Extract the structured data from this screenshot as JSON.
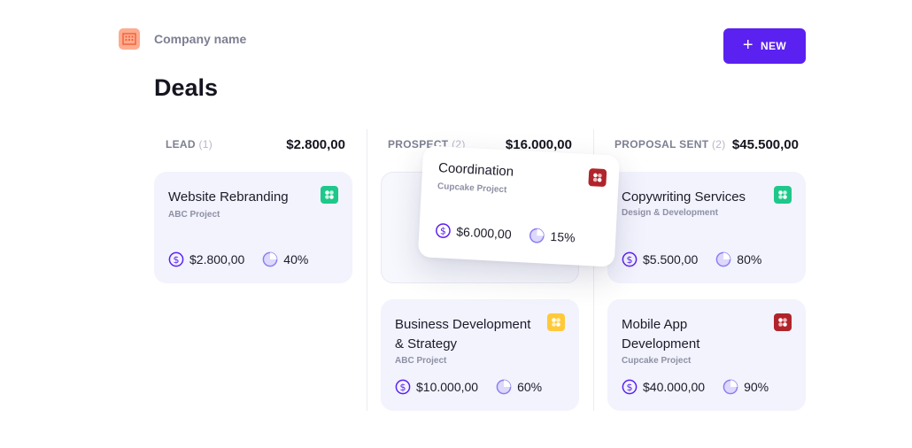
{
  "header": {
    "company_name": "Company name",
    "title": "Deals",
    "new_button_label": "NEW"
  },
  "colors": {
    "accent": "#5b21f0",
    "card_bg": "#f2f3fd",
    "green_badge": "#1ec88a",
    "red_badge": "#b0242c",
    "yellow_badge": "#ffc93a"
  },
  "columns": [
    {
      "label": "LEAD",
      "count": "(1)",
      "total": "$2.800,00",
      "cards": [
        {
          "title": "Website Rebranding",
          "project": "ABC Project",
          "amount": "$2.800,00",
          "probability": "40%",
          "badge": "green-badge-icon"
        }
      ]
    },
    {
      "label": "PROSPECT",
      "count": "(2)",
      "total": "$16.000,00",
      "cards": [
        {
          "title": "Business Development & Strategy",
          "project": "ABC Project",
          "amount": "$10.000,00",
          "probability": "60%",
          "badge": "yellow-badge-icon"
        }
      ]
    },
    {
      "label": "PROPOSAL SENT",
      "count": "(2)",
      "total": "$45.500,00",
      "cards": [
        {
          "title": "Copywriting Services",
          "project": "Design & Development",
          "amount": "$5.500,00",
          "probability": "80%",
          "badge": "green-badge-icon"
        },
        {
          "title": "Mobile App Development",
          "project": "Cupcake Project",
          "amount": "$40.000,00",
          "probability": "90%",
          "badge": "red-badge-icon"
        }
      ]
    }
  ],
  "dragging_card": {
    "title": "Coordination",
    "project": "Cupcake Project",
    "amount": "$6.000,00",
    "probability": "15%",
    "badge": "red-badge-icon"
  }
}
